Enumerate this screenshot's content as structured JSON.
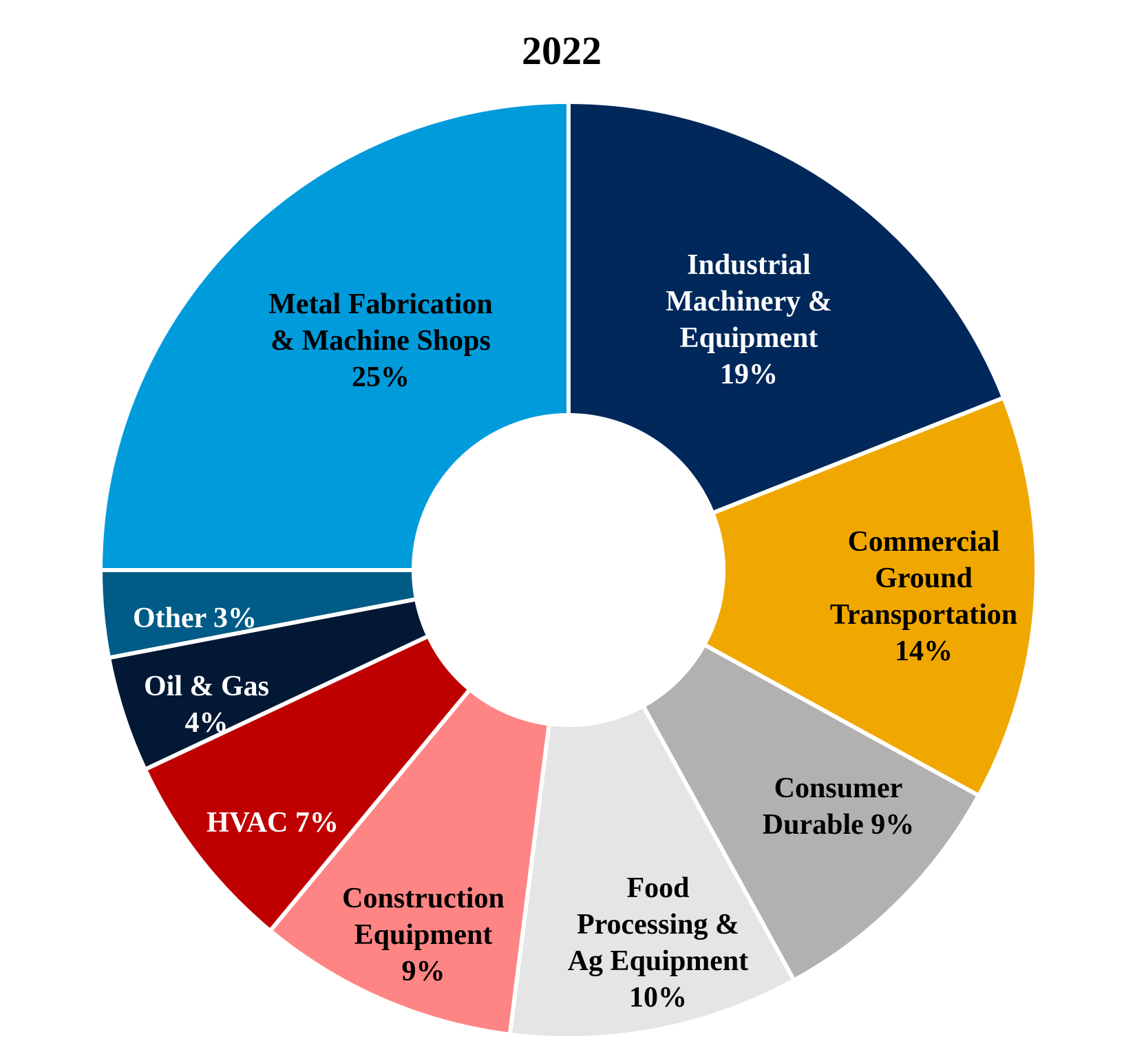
{
  "chart_data": {
    "type": "pie",
    "title": "2022",
    "slices": [
      {
        "name": "Industrial Machinery & Equipment",
        "value": 19,
        "color": "#00285A",
        "text_color": "#FFFFFF",
        "label_lines": [
          "Industrial",
          "Machinery &",
          "Equipment",
          "19%"
        ]
      },
      {
        "name": "Commercial Ground Transportation",
        "value": 14,
        "color": "#F0A800",
        "text_color": "#000000",
        "label_lines": [
          "Commercial",
          "Ground",
          "Transportation",
          "14%"
        ]
      },
      {
        "name": "Consumer Durable",
        "value": 9,
        "color": "#B1B1B1",
        "text_color": "#000000",
        "label_lines": [
          "Consumer",
          "Durable 9%"
        ]
      },
      {
        "name": "Food Processing & Ag Equipment",
        "value": 10,
        "color": "#E5E5E5",
        "text_color": "#000000",
        "label_lines": [
          "Food",
          "Processing &",
          "Ag Equipment",
          "10%"
        ]
      },
      {
        "name": "Construction Equipment",
        "value": 9,
        "color": "#FF8585",
        "text_color": "#000000",
        "label_lines": [
          "Construction",
          "Equipment",
          "9%"
        ]
      },
      {
        "name": "HVAC",
        "value": 7,
        "color": "#BF0000",
        "text_color": "#FFFFFF",
        "label_lines": [
          "HVAC 7%"
        ]
      },
      {
        "name": "Oil & Gas",
        "value": 4,
        "color": "#021834",
        "text_color": "#FFFFFF",
        "label_lines": [
          "Oil & Gas",
          "4%"
        ]
      },
      {
        "name": "Other",
        "value": 3,
        "color": "#005B86",
        "text_color": "#FFFFFF",
        "label_lines": [
          "Other 3%"
        ]
      },
      {
        "name": "Metal Fabrication & Machine Shops",
        "value": 25,
        "color": "#009BDB",
        "text_color": "#000000",
        "label_lines": [
          "Metal Fabrication",
          "& Machine Shops",
          "25%"
        ]
      }
    ]
  }
}
